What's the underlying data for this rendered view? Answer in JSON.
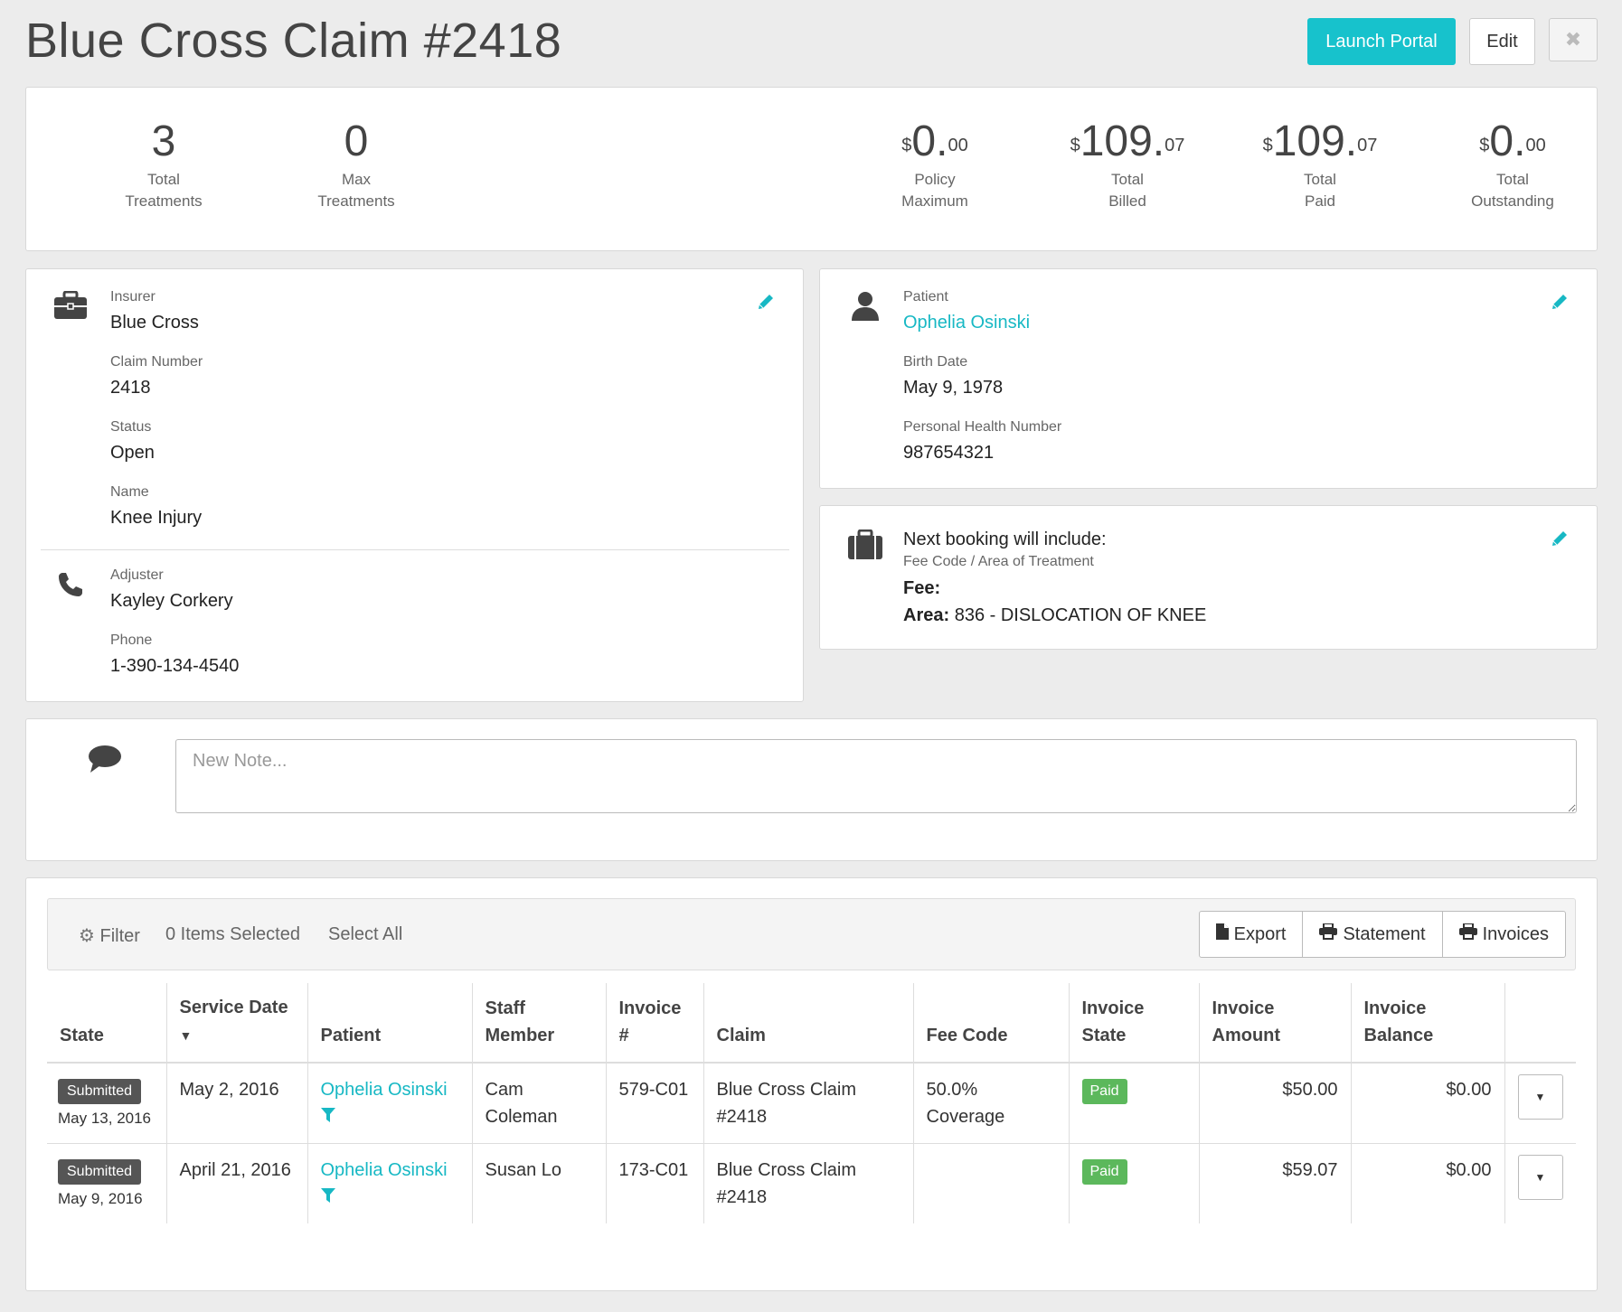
{
  "header": {
    "title": "Blue Cross Claim #2418",
    "launch_portal_label": "Launch Portal",
    "edit_label": "Edit",
    "close_glyph": "✖"
  },
  "stats": {
    "total_treatments": {
      "value": "3",
      "label_1": "Total",
      "label_2": "Treatments"
    },
    "max_treatments": {
      "value": "0",
      "label_1": "Max",
      "label_2": "Treatments"
    },
    "policy_maximum": {
      "currency": "$",
      "whole": "0.",
      "cents": "00",
      "label_1": "Policy",
      "label_2": "Maximum"
    },
    "total_billed": {
      "currency": "$",
      "whole": "109.",
      "cents": "07",
      "label_1": "Total",
      "label_2": "Billed"
    },
    "total_paid": {
      "currency": "$",
      "whole": "109.",
      "cents": "07",
      "label_1": "Total",
      "label_2": "Paid"
    },
    "total_outstanding": {
      "currency": "$",
      "whole": "0.",
      "cents": "00",
      "label_1": "Total",
      "label_2": "Outstanding"
    }
  },
  "insurer_card": {
    "insurer_label": "Insurer",
    "insurer_value": "Blue Cross",
    "claim_number_label": "Claim Number",
    "claim_number_value": "2418",
    "status_label": "Status",
    "status_value": "Open",
    "name_label": "Name",
    "name_value": "Knee Injury",
    "adjuster_label": "Adjuster",
    "adjuster_value": "Kayley Corkery",
    "phone_label": "Phone",
    "phone_value": "1-390-134-4540"
  },
  "patient_card": {
    "patient_label": "Patient",
    "patient_value": "Ophelia Osinski",
    "birth_date_label": "Birth Date",
    "birth_date_value": "May 9, 1978",
    "phn_label": "Personal Health Number",
    "phn_value": "987654321"
  },
  "booking_card": {
    "title": "Next booking will include:",
    "subtitle": "Fee Code / Area of Treatment",
    "fee_label": "Fee:",
    "fee_value": "",
    "area_label": "Area:",
    "area_value": "836 - DISLOCATION OF KNEE"
  },
  "notes": {
    "placeholder": "New Note..."
  },
  "toolbar": {
    "filter_label": "Filter",
    "items_selected": "0 Items Selected",
    "select_all": "Select All",
    "export_label": "Export",
    "statement_label": "Statement",
    "invoices_label": "Invoices"
  },
  "table": {
    "headers": {
      "state": "State",
      "service_date_1": "Service Date",
      "patient": "Patient",
      "staff_1": "Staff",
      "staff_2": "Member",
      "invoice_1": "Invoice",
      "invoice_2": "#",
      "claim": "Claim",
      "fee_code": "Fee Code",
      "invoice_state_1": "Invoice",
      "invoice_state_2": "State",
      "invoice_amount_1": "Invoice",
      "invoice_amount_2": "Amount",
      "invoice_balance_1": "Invoice",
      "invoice_balance_2": "Balance"
    },
    "rows": [
      {
        "state_badge": "Submitted",
        "state_date": "May 13, 2016",
        "service_date": "May 2, 2016",
        "patient": "Ophelia Osinski",
        "staff_1": "Cam",
        "staff_2": "Coleman",
        "invoice": "579-C01",
        "claim_1": "Blue Cross Claim",
        "claim_2": "#2418",
        "fee_code_1": "50.0%",
        "fee_code_2": "Coverage",
        "invoice_state": "Paid",
        "invoice_amount": "$50.00",
        "invoice_balance": "$0.00"
      },
      {
        "state_badge": "Submitted",
        "state_date": "May 9, 2016",
        "service_date": "April 21, 2016",
        "patient": "Ophelia Osinski",
        "staff_1": "Susan Lo",
        "staff_2": "",
        "invoice": "173-C01",
        "claim_1": "Blue Cross Claim",
        "claim_2": "#2418",
        "fee_code_1": "",
        "fee_code_2": "",
        "invoice_state": "Paid",
        "invoice_amount": "$59.07",
        "invoice_balance": "$0.00"
      }
    ]
  },
  "colors": {
    "accent": "#17c2cc",
    "paid": "#5cb85c",
    "submitted": "#555555",
    "background": "#ececec"
  },
  "icons": {
    "briefcase": "briefcase-icon",
    "phone": "phone-icon",
    "user": "user-icon",
    "suitcase": "suitcase-icon",
    "pencil": "pencil-icon",
    "comment": "comment-icon",
    "gear": "gear-icon",
    "file": "file-icon",
    "print": "print-icon",
    "funnel": "filter-funnel-icon",
    "caret": "caret-down-icon"
  }
}
